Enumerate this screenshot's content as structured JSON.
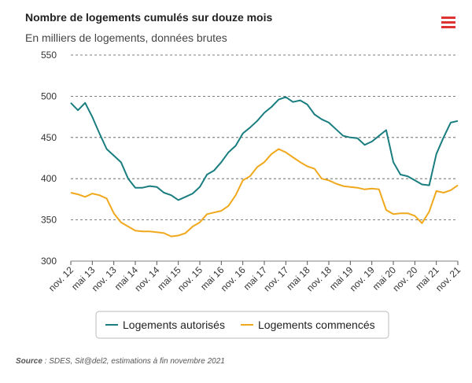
{
  "chart_data": {
    "type": "line",
    "title": "Nombre de logements cumulés sur douze mois",
    "subtitle": "En milliers de logements, données brutes",
    "categories": [
      "nov. 12",
      null,
      null,
      "mai 13",
      null,
      null,
      "nov. 13",
      null,
      null,
      "mai 14",
      null,
      null,
      "nov. 14",
      null,
      null,
      "mai 15",
      null,
      null,
      "nov. 15",
      null,
      null,
      "mai 16",
      null,
      null,
      "nov. 16",
      null,
      null,
      "mai 17",
      null,
      null,
      "nov. 17",
      null,
      null,
      "mai 18",
      null,
      null,
      "nov. 18",
      null,
      null,
      "mai 19",
      null,
      null,
      "nov. 19",
      null,
      null,
      "mai 20",
      null,
      null,
      "nov. 20",
      null,
      null,
      "mai 21",
      null,
      null,
      "nov. 21"
    ],
    "series": [
      {
        "name": "Logements autorisés",
        "color": "#1a7d80",
        "values": [
          492,
          483,
          492,
          475,
          455,
          436,
          428,
          420,
          400,
          389,
          389,
          391,
          390,
          383,
          380,
          374,
          378,
          382,
          390,
          405,
          410,
          420,
          432,
          440,
          455,
          462,
          470,
          480,
          487,
          496,
          499,
          493,
          495,
          490,
          478,
          472,
          468,
          460,
          452,
          450,
          449,
          441,
          445,
          452,
          459,
          420,
          405,
          403,
          398,
          393,
          392,
          430,
          450,
          468,
          470
        ]
      },
      {
        "name": "Logements commencés",
        "color": "#f0a81c",
        "values": [
          383,
          381,
          378,
          382,
          380,
          376,
          358,
          347,
          342,
          337,
          336,
          336,
          335,
          334,
          330,
          331,
          334,
          342,
          347,
          357,
          359,
          361,
          367,
          380,
          398,
          403,
          414,
          420,
          430,
          436,
          432,
          426,
          420,
          415,
          412,
          400,
          398,
          394,
          391,
          390,
          389,
          387,
          388,
          387,
          362,
          357,
          358,
          358,
          355,
          346,
          360,
          385,
          383,
          386,
          392
        ]
      }
    ],
    "ylim": [
      300,
      550
    ],
    "yticks": [
      300,
      350,
      400,
      450,
      500,
      550
    ],
    "grid": true,
    "source": {
      "label": "Source",
      "text": " : SDES, Sit@del2, estimations à fin novembre 2021"
    }
  }
}
